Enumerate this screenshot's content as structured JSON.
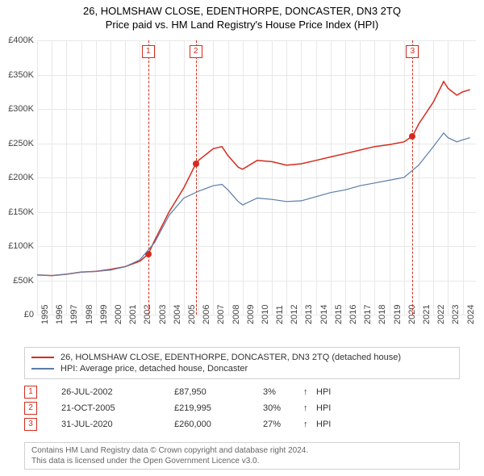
{
  "title": {
    "line1": "26, HOLMSHAW CLOSE, EDENTHORPE, DONCASTER, DN3 2TQ",
    "line2": "Price paid vs. HM Land Registry's House Price Index (HPI)",
    "fontsize": 13,
    "color": "#000000"
  },
  "chart": {
    "type": "line",
    "background_color": "#ffffff",
    "grid_color": "#e8e8e8",
    "ylim": [
      0,
      400000
    ],
    "ytick_step": 50000,
    "ytick_labels": [
      "£0",
      "£50K",
      "£100K",
      "£150K",
      "£200K",
      "£250K",
      "£300K",
      "£350K",
      "£400K"
    ],
    "xlim": [
      1995,
      2024.9
    ],
    "xtick_step": 1,
    "xtick_labels": [
      "1995",
      "1996",
      "1997",
      "1998",
      "1999",
      "2000",
      "2001",
      "2002",
      "2003",
      "2004",
      "2005",
      "2006",
      "2007",
      "2008",
      "2009",
      "2010",
      "2011",
      "2012",
      "2013",
      "2014",
      "2015",
      "2016",
      "2017",
      "2018",
      "2019",
      "2020",
      "2021",
      "2022",
      "2023",
      "2024"
    ],
    "axis_label_fontsize": 11,
    "series": [
      {
        "name": "26, HOLMSHAW CLOSE, EDENTHORPE, DONCASTER, DN3 2TQ (detached house)",
        "color": "#d52b1e",
        "line_width": 1.5,
        "points": [
          [
            1995,
            58000
          ],
          [
            1996,
            57000
          ],
          [
            1997,
            59000
          ],
          [
            1998,
            62000
          ],
          [
            1999,
            63000
          ],
          [
            2000,
            66000
          ],
          [
            2001,
            70000
          ],
          [
            2002,
            78000
          ],
          [
            2002.57,
            87950
          ],
          [
            2003,
            108000
          ],
          [
            2004,
            150000
          ],
          [
            2005,
            185000
          ],
          [
            2005.81,
            219995
          ],
          [
            2006,
            225000
          ],
          [
            2007,
            242000
          ],
          [
            2007.6,
            245000
          ],
          [
            2008,
            232000
          ],
          [
            2008.7,
            215000
          ],
          [
            2009,
            212000
          ],
          [
            2010,
            225000
          ],
          [
            2011,
            223000
          ],
          [
            2012,
            218000
          ],
          [
            2013,
            220000
          ],
          [
            2014,
            225000
          ],
          [
            2015,
            230000
          ],
          [
            2016,
            235000
          ],
          [
            2017,
            240000
          ],
          [
            2018,
            245000
          ],
          [
            2019,
            248000
          ],
          [
            2020,
            252000
          ],
          [
            2020.58,
            260000
          ],
          [
            2021,
            278000
          ],
          [
            2022,
            310000
          ],
          [
            2022.7,
            340000
          ],
          [
            2023,
            330000
          ],
          [
            2023.6,
            320000
          ],
          [
            2024,
            325000
          ],
          [
            2024.5,
            328000
          ]
        ]
      },
      {
        "name": "HPI: Average price, detached house, Doncaster",
        "color": "#5b7ca8",
        "line_width": 1.2,
        "points": [
          [
            1995,
            58000
          ],
          [
            1996,
            57000
          ],
          [
            1997,
            59000
          ],
          [
            1998,
            62000
          ],
          [
            1999,
            63000
          ],
          [
            2000,
            65000
          ],
          [
            2001,
            70000
          ],
          [
            2002,
            80000
          ],
          [
            2003,
            105000
          ],
          [
            2004,
            145000
          ],
          [
            2005,
            170000
          ],
          [
            2006,
            180000
          ],
          [
            2007,
            188000
          ],
          [
            2007.6,
            190000
          ],
          [
            2008,
            182000
          ],
          [
            2008.7,
            165000
          ],
          [
            2009,
            160000
          ],
          [
            2010,
            170000
          ],
          [
            2011,
            168000
          ],
          [
            2012,
            165000
          ],
          [
            2013,
            166000
          ],
          [
            2014,
            172000
          ],
          [
            2015,
            178000
          ],
          [
            2016,
            182000
          ],
          [
            2017,
            188000
          ],
          [
            2018,
            192000
          ],
          [
            2019,
            196000
          ],
          [
            2020,
            200000
          ],
          [
            2021,
            218000
          ],
          [
            2022,
            245000
          ],
          [
            2022.7,
            265000
          ],
          [
            2023,
            258000
          ],
          [
            2023.6,
            252000
          ],
          [
            2024,
            255000
          ],
          [
            2024.5,
            258000
          ]
        ]
      }
    ],
    "markers": [
      {
        "n": "1",
        "x": 2002.57,
        "y": 87950
      },
      {
        "n": "2",
        "x": 2005.81,
        "y": 219995
      },
      {
        "n": "3",
        "x": 2020.58,
        "y": 260000
      }
    ],
    "marker_line_color": "#d52b1e",
    "marker_box_color": "#d52b1e"
  },
  "legend": {
    "border_color": "#d0d0d0",
    "fontsize": 11,
    "items": [
      {
        "color": "#d52b1e",
        "label": "26, HOLMSHAW CLOSE, EDENTHORPE, DONCASTER, DN3 2TQ (detached house)"
      },
      {
        "color": "#5b7ca8",
        "label": "HPI: Average price, detached house, Doncaster"
      }
    ]
  },
  "events": [
    {
      "n": "1",
      "date": "26-JUL-2002",
      "price": "£87,950",
      "pct": "3%",
      "arrow": "↑",
      "tag": "HPI"
    },
    {
      "n": "2",
      "date": "21-OCT-2005",
      "price": "£219,995",
      "pct": "30%",
      "arrow": "↑",
      "tag": "HPI"
    },
    {
      "n": "3",
      "date": "31-JUL-2020",
      "price": "£260,000",
      "pct": "27%",
      "arrow": "↑",
      "tag": "HPI"
    }
  ],
  "footer": {
    "line1": "Contains HM Land Registry data © Crown copyright and database right 2024.",
    "line2": "This data is licensed under the Open Government Licence v3.0.",
    "fontsize": 10,
    "color": "#666666",
    "border_color": "#d0d0d0"
  }
}
